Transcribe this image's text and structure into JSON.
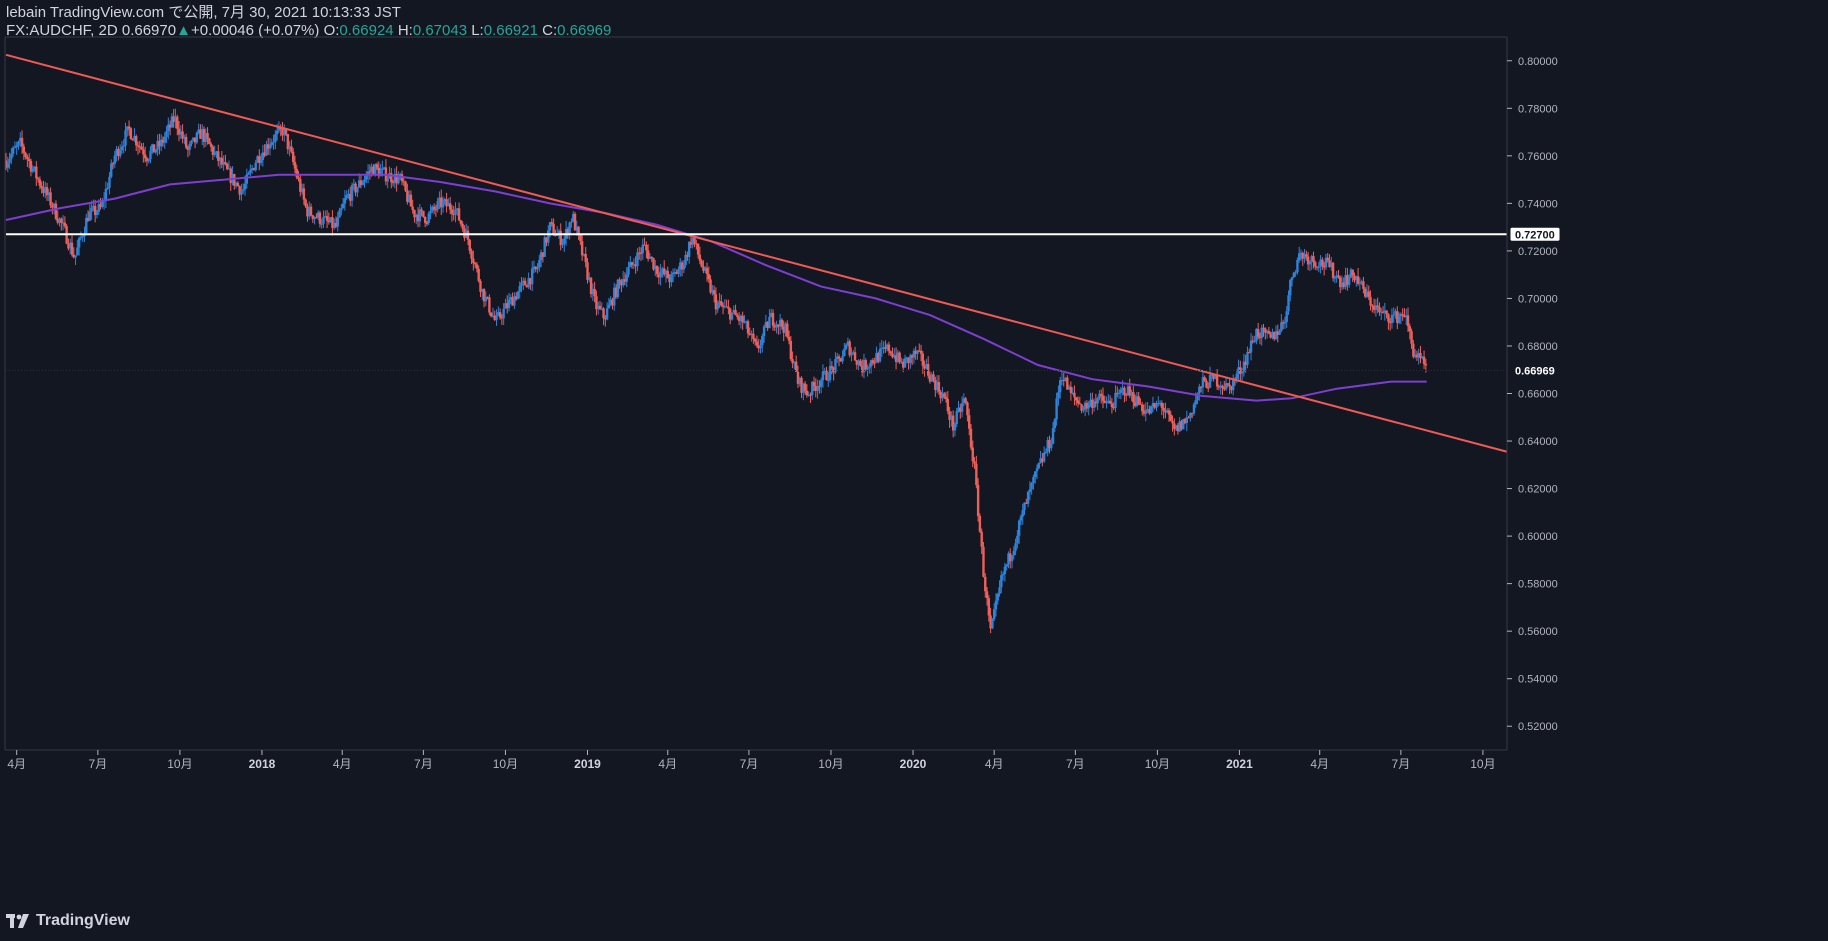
{
  "header": {
    "publish_line": "lebain TradingView.com で公開, 7月 30, 2021 10:13:33 JST",
    "symbol": "FX:AUDCHF, 2D",
    "last": "0.66970",
    "change": "+0.00046 (+0.07%)",
    "o_label": "O:",
    "o_value": "0.66924",
    "h_label": "H:",
    "h_value": "0.67043",
    "l_label": "L:",
    "l_value": "0.66921",
    "c_label": "C:",
    "c_value": "0.66969"
  },
  "footer": {
    "brand": "TradingView"
  },
  "colors": {
    "background": "#131722",
    "up": "#2f83d8",
    "down": "#f0605a",
    "trendline": "#f05a55",
    "ma": "#7e3fd0",
    "level": "#ffffff",
    "axis_text": "#b2b5be"
  },
  "chart_data": {
    "type": "candlestick",
    "y_range": [
      0.51,
      0.81
    ],
    "y_ticks": [
      "0.80000",
      "0.78000",
      "0.76000",
      "0.74000",
      "0.72000",
      "0.70000",
      "0.68000",
      "0.66000",
      "0.64000",
      "0.62000",
      "0.60000",
      "0.58000",
      "0.56000",
      "0.54000",
      "0.52000"
    ],
    "x_range": [
      "2017-03-20",
      "2021-10-28"
    ],
    "x_ticks": [
      {
        "label": "4月",
        "date": "2017-04-01"
      },
      {
        "label": "7月",
        "date": "2017-07-01"
      },
      {
        "label": "10月",
        "date": "2017-10-01"
      },
      {
        "label": "2018",
        "date": "2018-01-01"
      },
      {
        "label": "4月",
        "date": "2018-04-01"
      },
      {
        "label": "7月",
        "date": "2018-07-01"
      },
      {
        "label": "10月",
        "date": "2018-10-01"
      },
      {
        "label": "2019",
        "date": "2019-01-01"
      },
      {
        "label": "4月",
        "date": "2019-04-01"
      },
      {
        "label": "7月",
        "date": "2019-07-01"
      },
      {
        "label": "10月",
        "date": "2019-10-01"
      },
      {
        "label": "2020",
        "date": "2020-01-01"
      },
      {
        "label": "4月",
        "date": "2020-04-01"
      },
      {
        "label": "7月",
        "date": "2020-07-01"
      },
      {
        "label": "10月",
        "date": "2020-10-01"
      },
      {
        "label": "2021",
        "date": "2021-01-01"
      },
      {
        "label": "4月",
        "date": "2021-04-01"
      },
      {
        "label": "7月",
        "date": "2021-07-01"
      },
      {
        "label": "10月",
        "date": "2021-10-01"
      }
    ],
    "horizontal_level": {
      "value": 0.727,
      "label": "0.72700"
    },
    "last_price": {
      "value": 0.66969,
      "label": "0.66969"
    },
    "trendline": [
      {
        "date": "2017-03-20",
        "value": 0.8025
      },
      {
        "date": "2021-10-28",
        "value": 0.6355
      }
    ],
    "close_path": [
      {
        "date": "2017-03-20",
        "value": 0.758
      },
      {
        "date": "2017-04-05",
        "value": 0.765
      },
      {
        "date": "2017-04-25",
        "value": 0.75
      },
      {
        "date": "2017-05-10",
        "value": 0.74
      },
      {
        "date": "2017-05-25",
        "value": 0.728
      },
      {
        "date": "2017-06-05",
        "value": 0.717
      },
      {
        "date": "2017-06-20",
        "value": 0.735
      },
      {
        "date": "2017-07-05",
        "value": 0.738
      },
      {
        "date": "2017-07-20",
        "value": 0.76
      },
      {
        "date": "2017-08-05",
        "value": 0.771
      },
      {
        "date": "2017-08-25",
        "value": 0.76
      },
      {
        "date": "2017-09-10",
        "value": 0.765
      },
      {
        "date": "2017-09-25",
        "value": 0.776
      },
      {
        "date": "2017-10-10",
        "value": 0.762
      },
      {
        "date": "2017-10-25",
        "value": 0.77
      },
      {
        "date": "2017-11-10",
        "value": 0.76
      },
      {
        "date": "2017-11-25",
        "value": 0.752
      },
      {
        "date": "2017-12-10",
        "value": 0.745
      },
      {
        "date": "2017-12-25",
        "value": 0.758
      },
      {
        "date": "2018-01-10",
        "value": 0.766
      },
      {
        "date": "2018-01-25",
        "value": 0.771
      },
      {
        "date": "2018-02-05",
        "value": 0.757
      },
      {
        "date": "2018-02-20",
        "value": 0.737
      },
      {
        "date": "2018-03-10",
        "value": 0.733
      },
      {
        "date": "2018-03-25",
        "value": 0.73
      },
      {
        "date": "2018-04-05",
        "value": 0.742
      },
      {
        "date": "2018-04-20",
        "value": 0.748
      },
      {
        "date": "2018-05-05",
        "value": 0.755
      },
      {
        "date": "2018-05-20",
        "value": 0.752
      },
      {
        "date": "2018-06-05",
        "value": 0.75
      },
      {
        "date": "2018-06-20",
        "value": 0.736
      },
      {
        "date": "2018-07-05",
        "value": 0.734
      },
      {
        "date": "2018-07-20",
        "value": 0.74
      },
      {
        "date": "2018-08-05",
        "value": 0.738
      },
      {
        "date": "2018-08-20",
        "value": 0.725
      },
      {
        "date": "2018-09-05",
        "value": 0.703
      },
      {
        "date": "2018-09-20",
        "value": 0.69
      },
      {
        "date": "2018-10-05",
        "value": 0.698
      },
      {
        "date": "2018-10-20",
        "value": 0.705
      },
      {
        "date": "2018-11-05",
        "value": 0.712
      },
      {
        "date": "2018-11-20",
        "value": 0.73
      },
      {
        "date": "2018-12-05",
        "value": 0.724
      },
      {
        "date": "2018-12-15",
        "value": 0.735
      },
      {
        "date": "2018-12-28",
        "value": 0.716
      },
      {
        "date": "2019-01-10",
        "value": 0.697
      },
      {
        "date": "2019-01-20",
        "value": 0.692
      },
      {
        "date": "2019-02-05",
        "value": 0.706
      },
      {
        "date": "2019-02-20",
        "value": 0.714
      },
      {
        "date": "2019-03-05",
        "value": 0.722
      },
      {
        "date": "2019-03-20",
        "value": 0.712
      },
      {
        "date": "2019-04-05",
        "value": 0.708
      },
      {
        "date": "2019-04-20",
        "value": 0.716
      },
      {
        "date": "2019-04-28",
        "value": 0.726
      },
      {
        "date": "2019-05-10",
        "value": 0.713
      },
      {
        "date": "2019-05-25",
        "value": 0.698
      },
      {
        "date": "2019-06-10",
        "value": 0.694
      },
      {
        "date": "2019-06-25",
        "value": 0.69
      },
      {
        "date": "2019-07-10",
        "value": 0.678
      },
      {
        "date": "2019-07-25",
        "value": 0.692
      },
      {
        "date": "2019-08-10",
        "value": 0.688
      },
      {
        "date": "2019-08-25",
        "value": 0.665
      },
      {
        "date": "2019-09-05",
        "value": 0.66
      },
      {
        "date": "2019-09-20",
        "value": 0.666
      },
      {
        "date": "2019-10-05",
        "value": 0.671
      },
      {
        "date": "2019-10-20",
        "value": 0.68
      },
      {
        "date": "2019-11-05",
        "value": 0.671
      },
      {
        "date": "2019-11-20",
        "value": 0.675
      },
      {
        "date": "2019-12-05",
        "value": 0.679
      },
      {
        "date": "2019-12-20",
        "value": 0.672
      },
      {
        "date": "2020-01-05",
        "value": 0.677
      },
      {
        "date": "2020-01-20",
        "value": 0.668
      },
      {
        "date": "2020-02-05",
        "value": 0.658
      },
      {
        "date": "2020-02-15",
        "value": 0.646
      },
      {
        "date": "2020-02-28",
        "value": 0.658
      },
      {
        "date": "2020-03-10",
        "value": 0.628
      },
      {
        "date": "2020-03-20",
        "value": 0.585
      },
      {
        "date": "2020-03-28",
        "value": 0.559
      },
      {
        "date": "2020-04-10",
        "value": 0.583
      },
      {
        "date": "2020-04-20",
        "value": 0.593
      },
      {
        "date": "2020-05-05",
        "value": 0.612
      },
      {
        "date": "2020-05-20",
        "value": 0.628
      },
      {
        "date": "2020-06-05",
        "value": 0.642
      },
      {
        "date": "2020-06-15",
        "value": 0.669
      },
      {
        "date": "2020-06-25",
        "value": 0.66
      },
      {
        "date": "2020-07-10",
        "value": 0.654
      },
      {
        "date": "2020-07-25",
        "value": 0.658
      },
      {
        "date": "2020-08-10",
        "value": 0.655
      },
      {
        "date": "2020-08-25",
        "value": 0.662
      },
      {
        "date": "2020-09-05",
        "value": 0.658
      },
      {
        "date": "2020-09-20",
        "value": 0.652
      },
      {
        "date": "2020-10-05",
        "value": 0.656
      },
      {
        "date": "2020-10-20",
        "value": 0.644
      },
      {
        "date": "2020-11-05",
        "value": 0.65
      },
      {
        "date": "2020-11-20",
        "value": 0.664
      },
      {
        "date": "2020-12-05",
        "value": 0.666
      },
      {
        "date": "2020-12-20",
        "value": 0.662
      },
      {
        "date": "2021-01-05",
        "value": 0.672
      },
      {
        "date": "2021-01-20",
        "value": 0.686
      },
      {
        "date": "2021-02-05",
        "value": 0.683
      },
      {
        "date": "2021-02-20",
        "value": 0.69
      },
      {
        "date": "2021-03-01",
        "value": 0.71
      },
      {
        "date": "2021-03-10",
        "value": 0.719
      },
      {
        "date": "2021-03-25",
        "value": 0.716
      },
      {
        "date": "2021-04-10",
        "value": 0.714
      },
      {
        "date": "2021-04-25",
        "value": 0.707
      },
      {
        "date": "2021-05-10",
        "value": 0.71
      },
      {
        "date": "2021-05-25",
        "value": 0.7
      },
      {
        "date": "2021-06-10",
        "value": 0.693
      },
      {
        "date": "2021-06-25",
        "value": 0.692
      },
      {
        "date": "2021-07-05",
        "value": 0.694
      },
      {
        "date": "2021-07-15",
        "value": 0.678
      },
      {
        "date": "2021-07-30",
        "value": 0.6697
      }
    ],
    "moving_average": [
      {
        "date": "2017-03-20",
        "value": 0.733
      },
      {
        "date": "2017-05-20",
        "value": 0.738
      },
      {
        "date": "2017-07-20",
        "value": 0.742
      },
      {
        "date": "2017-09-20",
        "value": 0.748
      },
      {
        "date": "2017-11-20",
        "value": 0.75
      },
      {
        "date": "2018-01-20",
        "value": 0.752
      },
      {
        "date": "2018-03-20",
        "value": 0.752
      },
      {
        "date": "2018-05-20",
        "value": 0.752
      },
      {
        "date": "2018-07-20",
        "value": 0.749
      },
      {
        "date": "2018-09-20",
        "value": 0.745
      },
      {
        "date": "2018-11-20",
        "value": 0.74
      },
      {
        "date": "2019-01-20",
        "value": 0.736
      },
      {
        "date": "2019-03-20",
        "value": 0.731
      },
      {
        "date": "2019-05-20",
        "value": 0.724
      },
      {
        "date": "2019-07-20",
        "value": 0.714
      },
      {
        "date": "2019-09-20",
        "value": 0.705
      },
      {
        "date": "2019-11-20",
        "value": 0.7
      },
      {
        "date": "2020-01-20",
        "value": 0.693
      },
      {
        "date": "2020-03-20",
        "value": 0.683
      },
      {
        "date": "2020-05-20",
        "value": 0.672
      },
      {
        "date": "2020-07-20",
        "value": 0.666
      },
      {
        "date": "2020-09-20",
        "value": 0.663
      },
      {
        "date": "2020-11-20",
        "value": 0.659
      },
      {
        "date": "2021-01-20",
        "value": 0.657
      },
      {
        "date": "2021-03-01",
        "value": 0.658
      },
      {
        "date": "2021-04-20",
        "value": 0.662
      },
      {
        "date": "2021-06-20",
        "value": 0.665
      },
      {
        "date": "2021-07-30",
        "value": 0.665
      }
    ]
  }
}
